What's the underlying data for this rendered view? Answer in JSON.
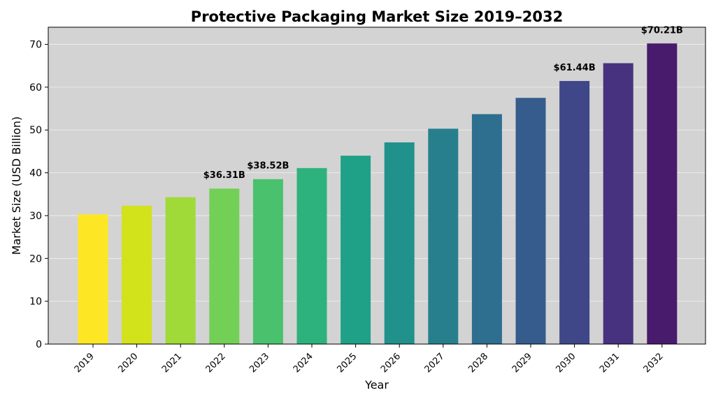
{
  "chart_data": {
    "type": "bar",
    "title": "Protective Packaging Market Size 2019–2032",
    "xlabel": "Year",
    "ylabel": "Market Size (USD Billion)",
    "categories": [
      "2019",
      "2020",
      "2021",
      "2022",
      "2023",
      "2024",
      "2025",
      "2026",
      "2027",
      "2028",
      "2029",
      "2030",
      "2031",
      "2032"
    ],
    "values": [
      30.3,
      32.3,
      34.3,
      36.31,
      38.52,
      41.1,
      44.0,
      47.1,
      50.3,
      53.7,
      57.5,
      61.44,
      65.6,
      70.21
    ],
    "colors": [
      "#fde725",
      "#d2e21b",
      "#a0da39",
      "#73d056",
      "#4ac16d",
      "#2db27d",
      "#1fa187",
      "#21918c",
      "#277f8e",
      "#2e6e8e",
      "#365c8d",
      "#3f4788",
      "#46327e",
      "#481b6d"
    ],
    "ylim": [
      0,
      74
    ],
    "yticks": [
      0,
      10,
      20,
      30,
      40,
      50,
      60,
      70
    ],
    "grid": true,
    "background_color": "#d3d3d3",
    "annotations": [
      {
        "category": "2022",
        "text": "$36.31B"
      },
      {
        "category": "2023",
        "text": "$38.52B"
      },
      {
        "category": "2030",
        "text": "$61.44B"
      },
      {
        "category": "2032",
        "text": "$70.21B"
      }
    ]
  }
}
